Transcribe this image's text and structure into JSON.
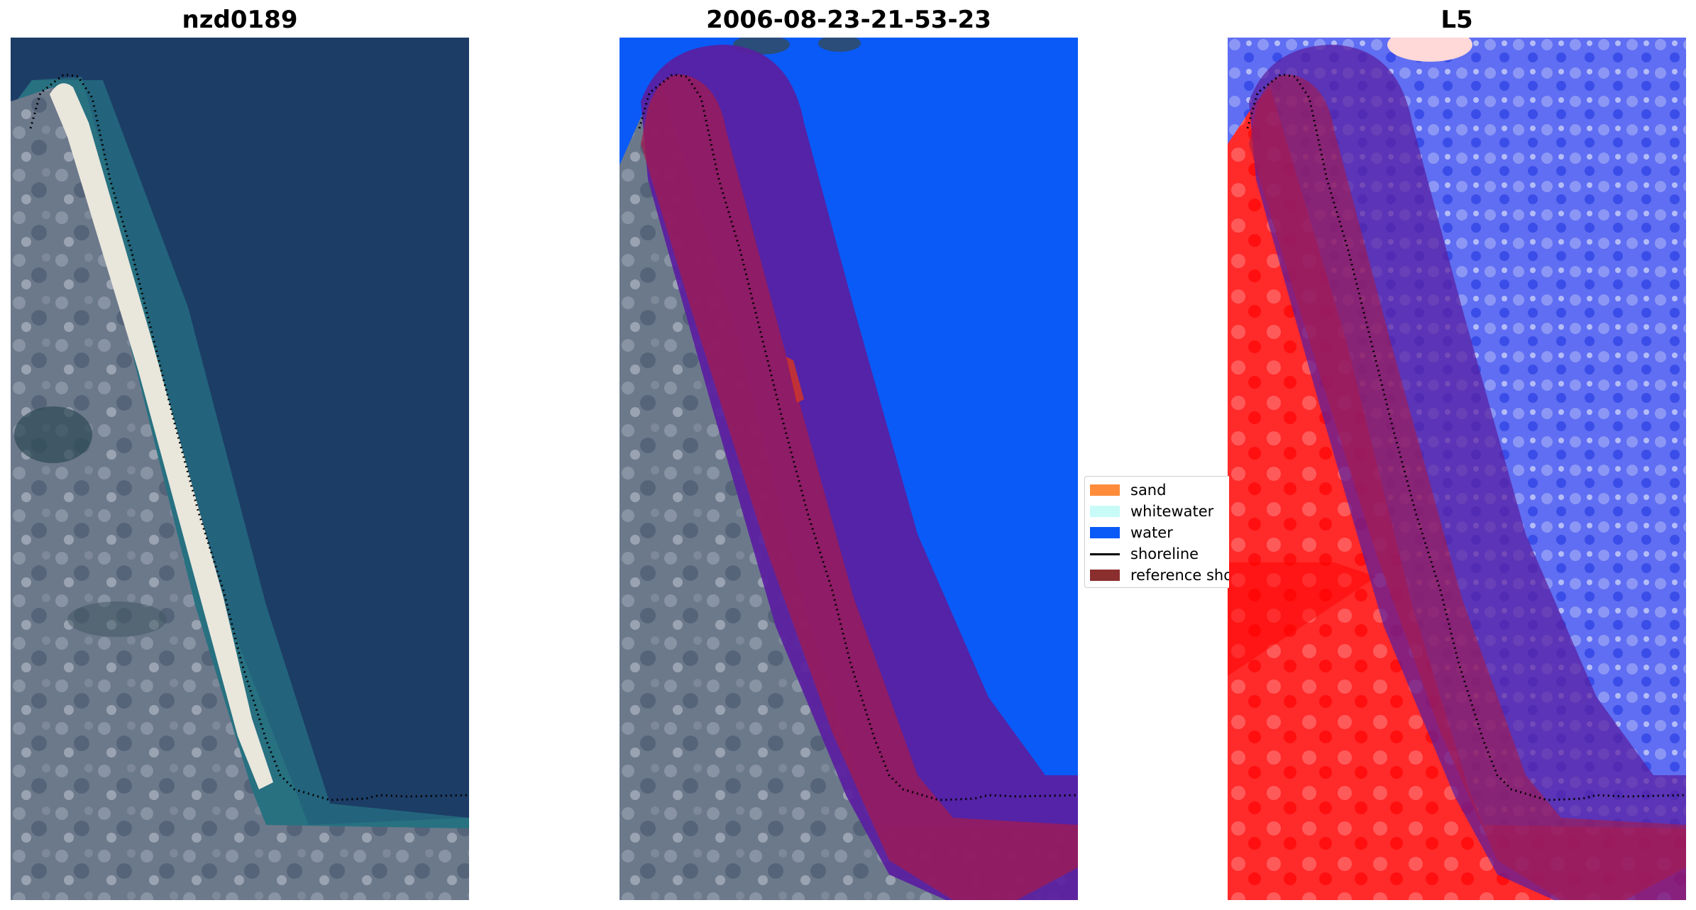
{
  "panels": [
    {
      "title": "nzd0189"
    },
    {
      "title": "2006-08-23-21-53-23"
    },
    {
      "title": "L5"
    }
  ],
  "legend": {
    "items": [
      {
        "label": "sand",
        "color": "#ff8c3a",
        "kind": "patch"
      },
      {
        "label": "whitewater",
        "color": "#c8fbf7",
        "kind": "patch"
      },
      {
        "label": "water",
        "color": "#0a5af7",
        "kind": "patch"
      },
      {
        "label": "shoreline",
        "color": "#000000",
        "kind": "line"
      },
      {
        "label": "reference sho",
        "color": "#8b2e2e",
        "kind": "patch"
      }
    ]
  },
  "colors": {
    "ocean": "#1c3d66",
    "land": "#6f7c8e",
    "beach": "#e9e6dc",
    "water_class": "#0a5af7",
    "buffer": "#5a1fa0",
    "reference_band": "#a51b4e",
    "ndwi_land": "#ff2020",
    "ndwi_water": "#4a5cf0"
  }
}
